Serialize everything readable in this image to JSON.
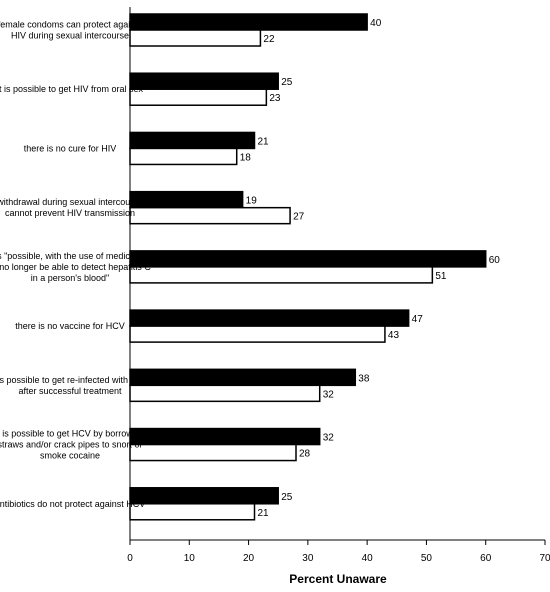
{
  "chart_data": {
    "type": "bar",
    "orientation": "horizontal",
    "title": "",
    "xlabel": "Percent Unaware",
    "ylabel": "",
    "xlim": [
      0,
      70
    ],
    "xticks": [
      0,
      10,
      20,
      30,
      40,
      50,
      60,
      70
    ],
    "grid": false,
    "legend": "none",
    "categories": [
      [
        "female condoms can protect against",
        "HIV during sexual intercourse"
      ],
      [
        "it is possible to get HIV from oral sex"
      ],
      [
        "there is no cure for HIV"
      ],
      [
        "withdrawal during sexual intercourse",
        "cannot prevent HIV transmission"
      ],
      [
        "it is \"possible, with the use of medication,",
        "to no longer be able to detect hepatitis C",
        "in a person's blood\""
      ],
      [
        "there is no vaccine for HCV"
      ],
      [
        "it is possible to get re-infected with HCV",
        "after successful treatment"
      ],
      [
        "it is possible to get HCV by borrowing",
        "straws and/or crack pipes to snort or",
        "smoke cocaine"
      ],
      [
        "antibiotics do not protect against HCV"
      ]
    ],
    "series": [
      {
        "values": [
          40,
          25,
          21,
          19,
          60,
          47,
          38,
          32,
          25
        ],
        "color": "#000000"
      },
      {
        "values": [
          22,
          23,
          18,
          27,
          51,
          43,
          32,
          28,
          21
        ],
        "color": "#ffffff"
      }
    ]
  }
}
